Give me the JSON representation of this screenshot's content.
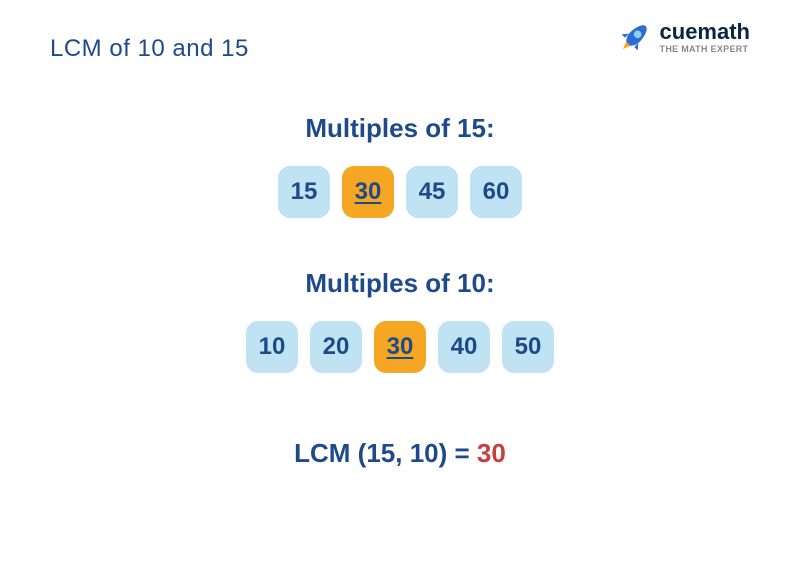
{
  "title": "LCM of 10 and 15",
  "title_color": "#1e4a8c",
  "logo": {
    "brand": "cuemath",
    "brand_color": "#0a2540",
    "tagline": "THE MATH EXPERT",
    "rocket_body": "#2a6cd4",
    "rocket_flame": "#f5a623",
    "rocket_window": "#8ed0f0"
  },
  "sections": [
    {
      "title": "Multiples of 15:",
      "title_color": "#1e4a8c",
      "chips": [
        {
          "value": "15",
          "highlight": false
        },
        {
          "value": "30",
          "highlight": true
        },
        {
          "value": "45",
          "highlight": false
        },
        {
          "value": "60",
          "highlight": false
        }
      ]
    },
    {
      "title": "Multiples of 10:",
      "title_color": "#1e4a8c",
      "chips": [
        {
          "value": "10",
          "highlight": false
        },
        {
          "value": "20",
          "highlight": false
        },
        {
          "value": "30",
          "highlight": true
        },
        {
          "value": "40",
          "highlight": false
        },
        {
          "value": "50",
          "highlight": false
        }
      ]
    }
  ],
  "chip_style": {
    "normal_bg": "#bfe3f2",
    "normal_color": "#1e4a8c",
    "highlight_bg": "#f5a623",
    "highlight_color": "#1e4a8c",
    "font_size": 24,
    "border_radius": 12
  },
  "result": {
    "prefix": "LCM (15, 10) = ",
    "prefix_color": "#1e4a8c",
    "value": "30",
    "value_color": "#c73e3e"
  }
}
